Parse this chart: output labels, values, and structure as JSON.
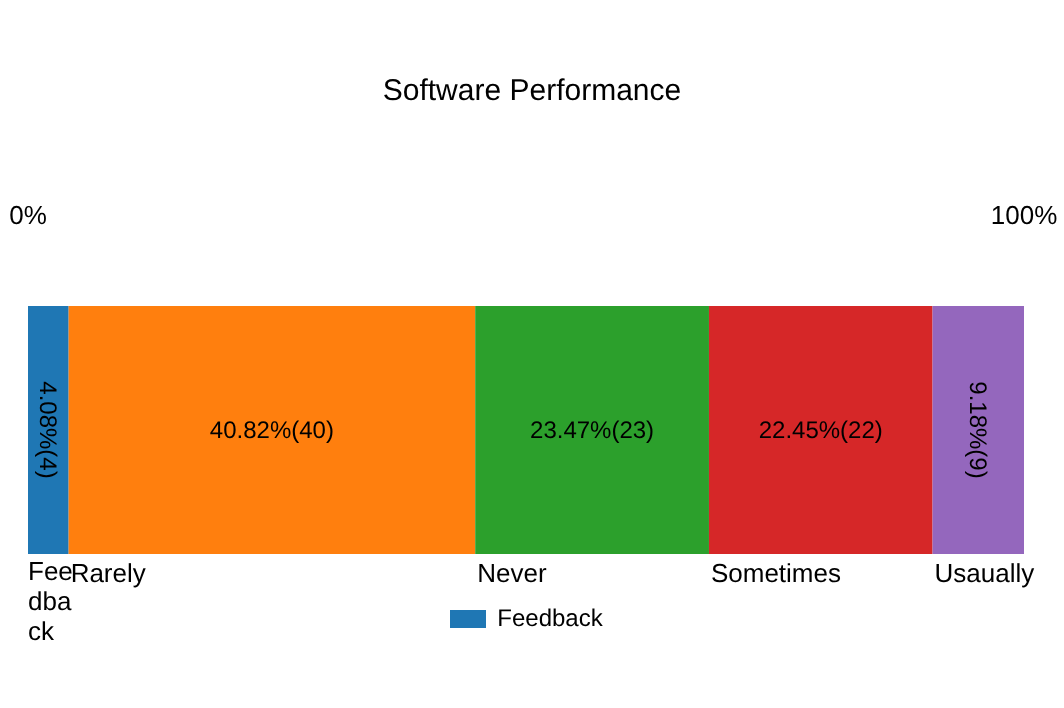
{
  "chart_data": {
    "type": "bar",
    "title": "Software Performance",
    "orientation": "horizontal",
    "stacked": true,
    "categories": [
      null
    ],
    "xlim": [
      0,
      100
    ],
    "xticks": [
      {
        "value": 0,
        "label": "0%"
      },
      {
        "value": 100,
        "label": "100%"
      }
    ],
    "series": [
      {
        "name": "Feedback",
        "color": "#1f77b4",
        "values": [
          4.08
        ],
        "value_labels": [
          "4.08%(4)"
        ]
      },
      {
        "name": "Rarely",
        "color": "#ff7f0e",
        "values": [
          40.82
        ],
        "value_labels": [
          "40.82%(40)"
        ]
      },
      {
        "name": "Never",
        "color": "#2ca02c",
        "values": [
          23.47
        ],
        "value_labels": [
          "23.47%(23)"
        ]
      },
      {
        "name": "Sometimes",
        "color": "#d62728",
        "values": [
          22.45
        ],
        "value_labels": [
          "22.45%(22)"
        ]
      },
      {
        "name": "Usaually",
        "color": "#9467bd",
        "values": [
          9.18
        ],
        "value_labels": [
          "9.18%(9)"
        ]
      }
    ],
    "legend": "bottom",
    "grid": false
  }
}
